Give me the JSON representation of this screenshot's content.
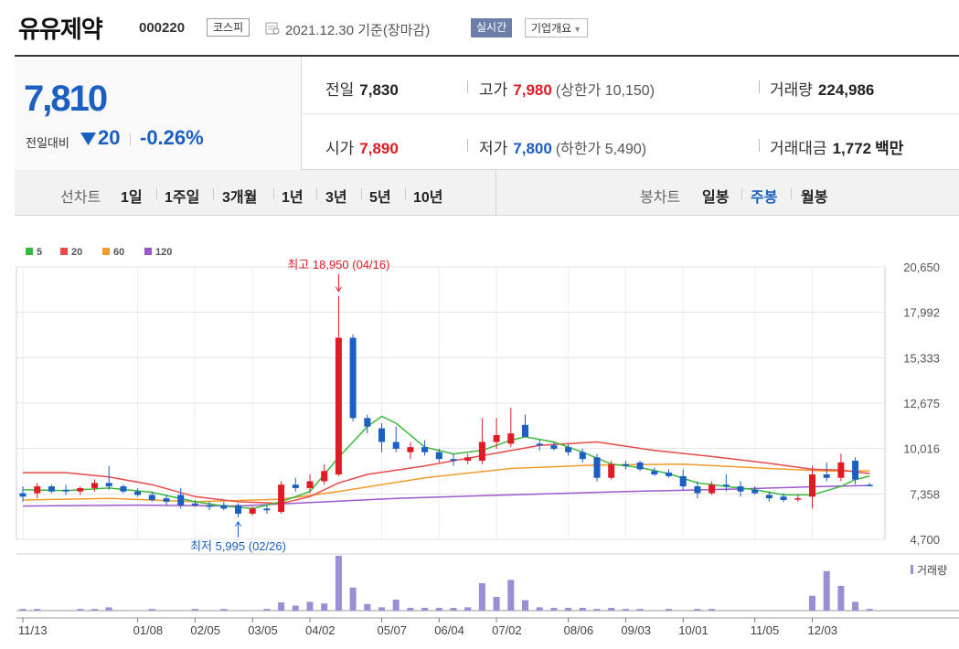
{
  "header": {
    "stock_name": "유유제약",
    "stock_code": "000220",
    "market": "코스피",
    "date": "2021.12.30 기준(장마감)",
    "live_button": "실시간",
    "overview_button": "기업개요"
  },
  "summary": {
    "current_price": "7,810",
    "change_label": "전일대비",
    "change": "20",
    "change_rate": "-0.26%",
    "prev_close_label": "전일",
    "prev_close": "7,830",
    "open_label": "시가",
    "open": "7,890",
    "high_label": "고가",
    "high": "7,980",
    "upper_limit": "(상한가 10,150)",
    "low_label": "저가",
    "low": "7,800",
    "lower_limit": "(하한가 5,490)",
    "volume_label": "거래량",
    "volume": "224,986",
    "turnover_label": "거래대금",
    "turnover": "1,772",
    "turnover_unit": "백만"
  },
  "period_bar": {
    "line_chart_label": "선차트",
    "line_options": [
      "1일",
      "1주일",
      "3개월",
      "1년",
      "3년",
      "5년",
      "10년"
    ],
    "candle_chart_label": "봉차트",
    "candle_options": [
      "일봉",
      "주봉",
      "월봉"
    ],
    "selected_candle": "주봉"
  },
  "colors": {
    "up": "#e01b24",
    "down": "#1a5fc1",
    "ma5": "#3cb93c",
    "ma20": "#e84a4a",
    "ma60": "#f39a2b",
    "ma120": "#9b59c9",
    "volume": "#9b8ed4"
  },
  "chart_data": {
    "type": "candlestick",
    "interval": "weekly",
    "legend": [
      "5",
      "20",
      "60",
      "120"
    ],
    "y_ticks": [
      "20,650",
      "17,992",
      "15,333",
      "12,675",
      "10,016",
      "7,358",
      "4,700"
    ],
    "ylim": [
      4700,
      20650
    ],
    "x_tick_labels": [
      "11/13",
      "01/08",
      "02/05",
      "03/05",
      "04/02",
      "05/07",
      "06/04",
      "07/02",
      "08/06",
      "09/03",
      "10/01",
      "11/05",
      "12/03"
    ],
    "x_tick_index": [
      0,
      8,
      12,
      16,
      20,
      25,
      29,
      33,
      38,
      42,
      46,
      51,
      55
    ],
    "volume_label": "거래량",
    "annotations": {
      "high": {
        "text": "최고 18,950 (04/16)",
        "index": 22,
        "value": 18950
      },
      "low": {
        "text": "최저 5,995 (02/26)",
        "index": 15,
        "value": 5995
      }
    },
    "candles": [
      {
        "o": 7400,
        "h": 7800,
        "l": 6900,
        "c": 7200
      },
      {
        "o": 7400,
        "h": 8000,
        "l": 7100,
        "c": 7800
      },
      {
        "o": 7800,
        "h": 7900,
        "l": 7400,
        "c": 7500
      },
      {
        "o": 7600,
        "h": 7900,
        "l": 7300,
        "c": 7500
      },
      {
        "o": 7500,
        "h": 7800,
        "l": 7300,
        "c": 7700
      },
      {
        "o": 7700,
        "h": 8200,
        "l": 7500,
        "c": 8000
      },
      {
        "o": 8000,
        "h": 9000,
        "l": 7600,
        "c": 7800
      },
      {
        "o": 7800,
        "h": 7900,
        "l": 7400,
        "c": 7500
      },
      {
        "o": 7500,
        "h": 7700,
        "l": 7200,
        "c": 7300
      },
      {
        "o": 7300,
        "h": 7500,
        "l": 6900,
        "c": 7000
      },
      {
        "o": 7100,
        "h": 7300,
        "l": 6700,
        "c": 6900
      },
      {
        "o": 7300,
        "h": 7700,
        "l": 6500,
        "c": 6700
      },
      {
        "o": 6800,
        "h": 7000,
        "l": 6600,
        "c": 6700
      },
      {
        "o": 6700,
        "h": 6900,
        "l": 6400,
        "c": 6600
      },
      {
        "o": 6700,
        "h": 6900,
        "l": 6400,
        "c": 6500
      },
      {
        "o": 6700,
        "h": 6800,
        "l": 5995,
        "c": 6200
      },
      {
        "o": 6200,
        "h": 6600,
        "l": 6100,
        "c": 6500
      },
      {
        "o": 6500,
        "h": 6700,
        "l": 6200,
        "c": 6400
      },
      {
        "o": 6300,
        "h": 8100,
        "l": 6200,
        "c": 7900
      },
      {
        "o": 7900,
        "h": 8300,
        "l": 7500,
        "c": 7700
      },
      {
        "o": 7700,
        "h": 8500,
        "l": 7400,
        "c": 8100
      },
      {
        "o": 8100,
        "h": 9100,
        "l": 7900,
        "c": 8700
      },
      {
        "o": 8500,
        "h": 18950,
        "l": 8400,
        "c": 16500
      },
      {
        "o": 16500,
        "h": 16700,
        "l": 11600,
        "c": 11800
      },
      {
        "o": 11800,
        "h": 12000,
        "l": 10900,
        "c": 11300
      },
      {
        "o": 11200,
        "h": 11500,
        "l": 9800,
        "c": 10400
      },
      {
        "o": 10400,
        "h": 11300,
        "l": 9800,
        "c": 10000
      },
      {
        "o": 9800,
        "h": 10400,
        "l": 9400,
        "c": 10100
      },
      {
        "o": 10100,
        "h": 10500,
        "l": 9600,
        "c": 9800
      },
      {
        "o": 9800,
        "h": 10000,
        "l": 9200,
        "c": 9400
      },
      {
        "o": 9400,
        "h": 9700,
        "l": 9000,
        "c": 9300
      },
      {
        "o": 9300,
        "h": 9700,
        "l": 9100,
        "c": 9500
      },
      {
        "o": 9300,
        "h": 11800,
        "l": 9100,
        "c": 10400
      },
      {
        "o": 10400,
        "h": 11800,
        "l": 10000,
        "c": 10800
      },
      {
        "o": 10300,
        "h": 12400,
        "l": 10100,
        "c": 10900
      },
      {
        "o": 11400,
        "h": 12000,
        "l": 10700,
        "c": 10700
      },
      {
        "o": 10300,
        "h": 10500,
        "l": 9900,
        "c": 10200
      },
      {
        "o": 10200,
        "h": 10400,
        "l": 9900,
        "c": 10000
      },
      {
        "o": 10100,
        "h": 10300,
        "l": 9600,
        "c": 9800
      },
      {
        "o": 9800,
        "h": 10000,
        "l": 9200,
        "c": 9400
      },
      {
        "o": 9500,
        "h": 9700,
        "l": 8100,
        "c": 8300
      },
      {
        "o": 8300,
        "h": 9300,
        "l": 8200,
        "c": 9100
      },
      {
        "o": 9100,
        "h": 9300,
        "l": 8800,
        "c": 9000
      },
      {
        "o": 9200,
        "h": 9300,
        "l": 8700,
        "c": 8800
      },
      {
        "o": 8700,
        "h": 8900,
        "l": 8400,
        "c": 8500
      },
      {
        "o": 8600,
        "h": 8800,
        "l": 8300,
        "c": 8400
      },
      {
        "o": 8400,
        "h": 8800,
        "l": 7600,
        "c": 7800
      },
      {
        "o": 7800,
        "h": 8100,
        "l": 7100,
        "c": 7400
      },
      {
        "o": 7400,
        "h": 8100,
        "l": 7300,
        "c": 7900
      },
      {
        "o": 7900,
        "h": 8500,
        "l": 7500,
        "c": 7800
      },
      {
        "o": 7800,
        "h": 8100,
        "l": 7200,
        "c": 7500
      },
      {
        "o": 7600,
        "h": 7800,
        "l": 7300,
        "c": 7400
      },
      {
        "o": 7300,
        "h": 7500,
        "l": 6900,
        "c": 7100
      },
      {
        "o": 7200,
        "h": 7400,
        "l": 6900,
        "c": 7000
      },
      {
        "o": 7100,
        "h": 7300,
        "l": 6900,
        "c": 7100
      },
      {
        "o": 7200,
        "h": 9000,
        "l": 6500,
        "c": 8500
      },
      {
        "o": 8500,
        "h": 9200,
        "l": 8100,
        "c": 8300
      },
      {
        "o": 8300,
        "h": 9700,
        "l": 8100,
        "c": 9200
      },
      {
        "o": 9300,
        "h": 9500,
        "l": 7900,
        "c": 8200
      },
      {
        "o": 7890,
        "h": 8000,
        "l": 7800,
        "c": 7810
      }
    ],
    "volume_rel": [
      0.03,
      0.03,
      0,
      0,
      0.03,
      0.03,
      0.06,
      0,
      0,
      0.03,
      0,
      0,
      0.03,
      0,
      0.03,
      0,
      0,
      0.03,
      0.15,
      0.09,
      0.16,
      0.13,
      1.0,
      0.42,
      0.12,
      0.06,
      0.2,
      0.05,
      0.05,
      0.05,
      0.05,
      0.06,
      0.5,
      0.25,
      0.56,
      0.19,
      0.06,
      0.05,
      0.05,
      0.05,
      0.03,
      0.05,
      0.03,
      0.03,
      0,
      0.03,
      0,
      0.03,
      0.03,
      0,
      0,
      0,
      0,
      0,
      0,
      0.27,
      0.72,
      0.45,
      0.16,
      0.03
    ],
    "ma5": [
      [
        0,
        7600
      ],
      [
        3,
        7550
      ],
      [
        6,
        7700
      ],
      [
        9,
        7450
      ],
      [
        12,
        6900
      ],
      [
        14,
        6650
      ],
      [
        16,
        6500
      ],
      [
        18,
        6900
      ],
      [
        20,
        7500
      ],
      [
        22,
        9500
      ],
      [
        24,
        11300
      ],
      [
        25,
        11900
      ],
      [
        26,
        11500
      ],
      [
        28,
        10100
      ],
      [
        30,
        9700
      ],
      [
        32,
        9900
      ],
      [
        34,
        10500
      ],
      [
        35,
        10700
      ],
      [
        37,
        10400
      ],
      [
        39,
        9800
      ],
      [
        41,
        9100
      ],
      [
        43,
        8900
      ],
      [
        45,
        8550
      ],
      [
        47,
        8000
      ],
      [
        49,
        7800
      ],
      [
        51,
        7600
      ],
      [
        53,
        7300
      ],
      [
        55,
        7300
      ],
      [
        57,
        7800
      ],
      [
        58,
        8200
      ],
      [
        59,
        8400
      ]
    ],
    "ma20": [
      [
        0,
        8600
      ],
      [
        3,
        8600
      ],
      [
        6,
        8350
      ],
      [
        9,
        7900
      ],
      [
        12,
        7200
      ],
      [
        15,
        6900
      ],
      [
        18,
        6800
      ],
      [
        20,
        7200
      ],
      [
        22,
        8000
      ],
      [
        24,
        8500
      ],
      [
        28,
        9000
      ],
      [
        32,
        9600
      ],
      [
        36,
        10200
      ],
      [
        40,
        10400
      ],
      [
        44,
        9900
      ],
      [
        48,
        9550
      ],
      [
        52,
        9150
      ],
      [
        55,
        8800
      ],
      [
        57,
        8750
      ],
      [
        59,
        8550
      ]
    ],
    "ma60": [
      [
        0,
        7000
      ],
      [
        6,
        7100
      ],
      [
        12,
        6900
      ],
      [
        18,
        7050
      ],
      [
        22,
        7500
      ],
      [
        28,
        8300
      ],
      [
        34,
        8850
      ],
      [
        40,
        9050
      ],
      [
        46,
        9100
      ],
      [
        52,
        8850
      ],
      [
        56,
        8700
      ],
      [
        59,
        8700
      ]
    ],
    "ma120": [
      [
        0,
        6650
      ],
      [
        8,
        6700
      ],
      [
        15,
        6650
      ],
      [
        20,
        6850
      ],
      [
        26,
        7100
      ],
      [
        34,
        7300
      ],
      [
        42,
        7500
      ],
      [
        50,
        7650
      ],
      [
        56,
        7800
      ],
      [
        59,
        7850
      ]
    ]
  }
}
